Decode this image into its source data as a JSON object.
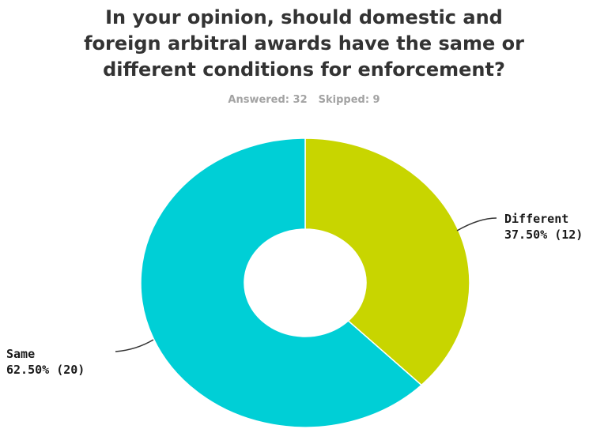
{
  "title_lines": [
    "In your opinion, should domestic and",
    "foreign arbitral awards have the same or",
    "different conditions for enforcement?"
  ],
  "meta": {
    "answered": "Answered: 32",
    "skipped": "Skipped: 9"
  },
  "colors": {
    "same": "#00cfd6",
    "different": "#c8d500",
    "leader": "#333333"
  },
  "chart_data": {
    "type": "pie",
    "variant": "donut",
    "title": "In your opinion, should domestic and foreign arbitral awards have the same or different conditions for enforcement?",
    "answered": 32,
    "skipped": 9,
    "slices": [
      {
        "key": "different",
        "label": "Different",
        "percent": 37.5,
        "count": 12,
        "percent_text": "37.50% (12)",
        "color": "#c8d500"
      },
      {
        "key": "same",
        "label": "Same",
        "percent": 62.5,
        "count": 20,
        "percent_text": "62.50% (20)",
        "color": "#00cfd6"
      }
    ]
  }
}
